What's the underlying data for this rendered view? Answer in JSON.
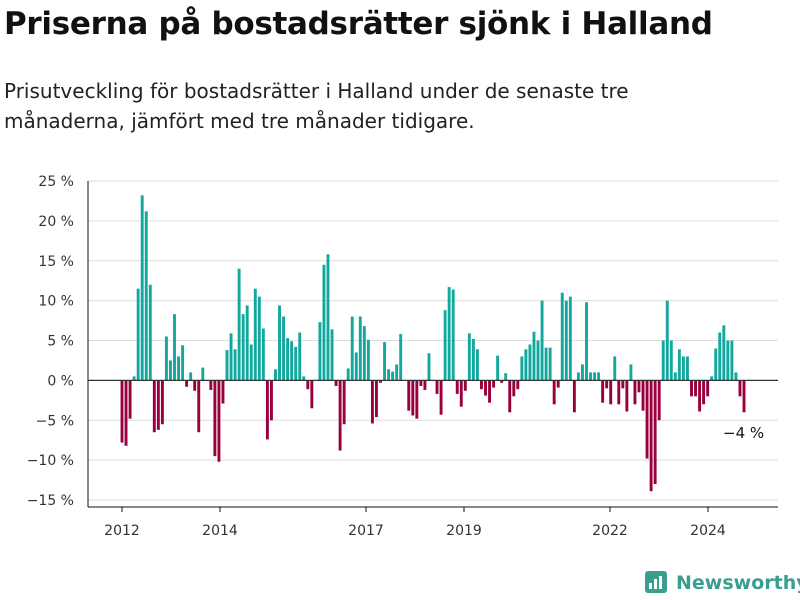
{
  "title": "Priserna på bostadsrätter sjönk i Halland",
  "subtitle": "Prisutveckling för bostadsrätter i Halland under de senaste tre månaderna, jämfört med tre månader tidigare.",
  "brand": {
    "name": "Newsworthy",
    "icon": "newsworthy-logo-icon"
  },
  "colors": {
    "positive": "#13a89e",
    "negative": "#99003d",
    "grid": "#dddddd",
    "axis": "#111111"
  },
  "chart_data": {
    "type": "bar",
    "xlabel": "",
    "ylabel": "",
    "ylim": [
      -15,
      25
    ],
    "y_ticks": [
      -15,
      -10,
      -5,
      0,
      5,
      10,
      15,
      20,
      25
    ],
    "y_tick_labels": [
      "−15 %",
      "−10 %",
      "−5 %",
      "0 %",
      "5 %",
      "10 %",
      "15 %",
      "20 %",
      "25 %"
    ],
    "x_ticks": [
      "2012",
      "2014",
      "2017",
      "2019",
      "2022",
      "2024"
    ],
    "annotation": "−4 %",
    "grid": true,
    "legend": "none",
    "values": [
      -7.8,
      -8.2,
      -4.8,
      0.5,
      11.5,
      23.2,
      21.2,
      12,
      -6.5,
      -6.2,
      -5.5,
      5.5,
      2.5,
      8.3,
      3,
      4.4,
      -0.8,
      1,
      -1.3,
      -6.5,
      1.6,
      null,
      -1.2,
      -9.5,
      -10.2,
      -2.9,
      3.8,
      5.9,
      3.9,
      14,
      8.3,
      9.4,
      4.5,
      11.5,
      10.5,
      6.5,
      -7.4,
      -5,
      1.4,
      9.4,
      8,
      5.3,
      4.9,
      4.2,
      6,
      0.5,
      -1.1,
      -3.5,
      null,
      7.3,
      14.5,
      15.8,
      6.4,
      -0.7,
      -8.8,
      -5.5,
      1.5,
      8,
      3.5,
      8,
      6.8,
      5.1,
      -5.4,
      -4.6,
      -0.3,
      4.8,
      1.4,
      1.1,
      2,
      5.8,
      null,
      -3.8,
      -4.4,
      -4.8,
      -0.7,
      -1.2,
      3.4,
      null,
      -1.7,
      -4.3,
      8.8,
      11.7,
      11.4,
      -1.7,
      -3.3,
      -1.3,
      5.9,
      5.2,
      3.9,
      -1.1,
      -1.9,
      -2.8,
      -0.9,
      3.1,
      -0.3,
      0.9,
      -4,
      -2,
      -1.1,
      3,
      3.9,
      4.5,
      6.1,
      5,
      10,
      4.1,
      4.1,
      -3,
      -0.9,
      11,
      10,
      10.5,
      -4,
      1,
      2,
      9.8,
      1,
      1,
      1,
      -2.8,
      -1,
      -3,
      3,
      -3,
      -1,
      -3.9,
      2,
      -3,
      -1.5,
      -3.8,
      -9.8,
      -13.9,
      -13,
      -5,
      5,
      10,
      5,
      1,
      3.9,
      3,
      3,
      -2,
      -2,
      -3.9,
      -3,
      -2,
      0.5,
      4,
      6,
      6.9,
      5,
      5,
      1,
      -2,
      -4
    ]
  }
}
